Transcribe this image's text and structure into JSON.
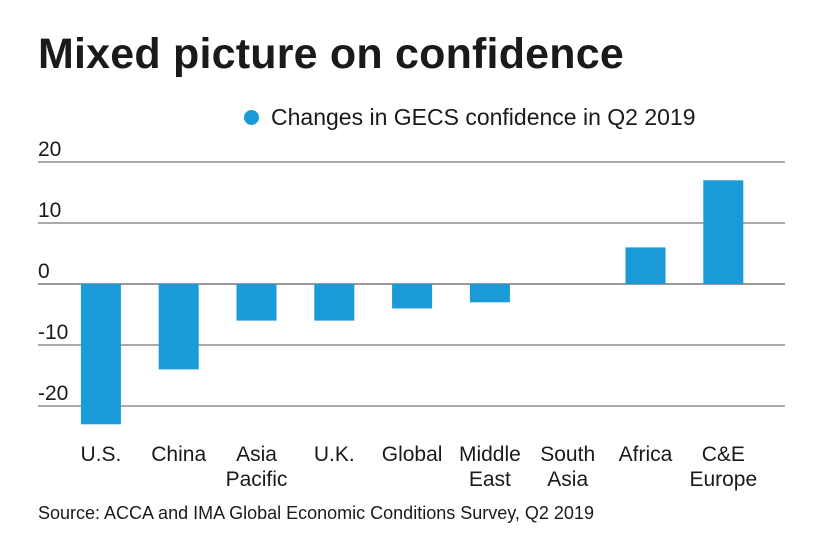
{
  "chart_data": {
    "type": "bar",
    "title": "Mixed picture on confidence",
    "series": [
      {
        "name": "Changes in GECS confidence in Q2 2019",
        "color": "#1a9ad6",
        "values": [
          -23,
          -14,
          -6,
          -6,
          -4,
          -3,
          0,
          6,
          17
        ]
      }
    ],
    "categories": [
      [
        "U.S."
      ],
      [
        "China"
      ],
      [
        "Asia",
        "Pacific"
      ],
      [
        "U.K."
      ],
      [
        "Global"
      ],
      [
        "Middle",
        "East"
      ],
      [
        "South",
        "Asia"
      ],
      [
        "Africa"
      ],
      [
        "C&E",
        "Europe"
      ]
    ],
    "yticks": [
      "20",
      "10",
      "0",
      "-10",
      "-20"
    ],
    "ylim": [
      -23,
      20
    ],
    "grid": true,
    "xlabel": "",
    "ylabel": "",
    "legend_position": "top-right",
    "source": "Source: ACCA and IMA Global Economic Conditions Survey, Q2 2019"
  }
}
